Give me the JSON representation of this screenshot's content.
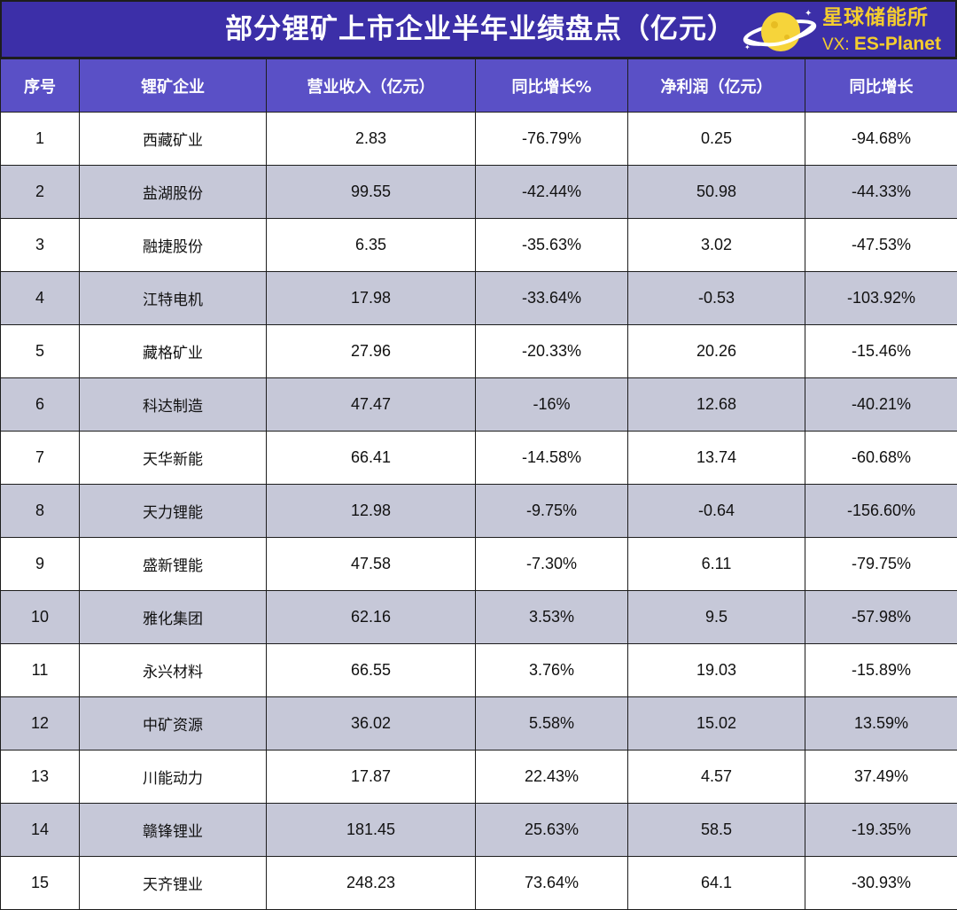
{
  "title": "部分锂矿上市企业半年业绩盘点（亿元）",
  "logo": {
    "name": "星球储能所",
    "vx_prefix": "VX:",
    "vx_handle": "ES-Planet",
    "planet_color": "#f6d43a",
    "ring_color": "#ffffff",
    "text_color": "#f4cd2e"
  },
  "colors": {
    "title_bg": "#3c2fa8",
    "header_bg": "#5a50c6",
    "stripe_bg": "#c6c8d8",
    "border": "#1d1d1d"
  },
  "columns": [
    "序号",
    "锂矿企业",
    "营业收入（亿元）",
    "同比增长%",
    "净利润（亿元）",
    "同比增长"
  ],
  "rows": [
    [
      "1",
      "西藏矿业",
      "2.83",
      "-76.79%",
      "0.25",
      "-94.68%"
    ],
    [
      "2",
      "盐湖股份",
      "99.55",
      "-42.44%",
      "50.98",
      "-44.33%"
    ],
    [
      "3",
      "融捷股份",
      "6.35",
      "-35.63%",
      "3.02",
      "-47.53%"
    ],
    [
      "4",
      "江特电机",
      "17.98",
      "-33.64%",
      "-0.53",
      "-103.92%"
    ],
    [
      "5",
      "藏格矿业",
      "27.96",
      "-20.33%",
      "20.26",
      "-15.46%"
    ],
    [
      "6",
      "科达制造",
      "47.47",
      "-16%",
      "12.68",
      "-40.21%"
    ],
    [
      "7",
      "天华新能",
      "66.41",
      "-14.58%",
      "13.74",
      "-60.68%"
    ],
    [
      "8",
      "天力锂能",
      "12.98",
      "-9.75%",
      "-0.64",
      "-156.60%"
    ],
    [
      "9",
      "盛新锂能",
      "47.58",
      "-7.30%",
      "6.11",
      "-79.75%"
    ],
    [
      "10",
      "雅化集团",
      "62.16",
      "3.53%",
      "9.5",
      "-57.98%"
    ],
    [
      "11",
      "永兴材料",
      "66.55",
      "3.76%",
      "19.03",
      "-15.89%"
    ],
    [
      "12",
      "中矿资源",
      "36.02",
      "5.58%",
      "15.02",
      "13.59%"
    ],
    [
      "13",
      "川能动力",
      "17.87",
      "22.43%",
      "4.57",
      "37.49%"
    ],
    [
      "14",
      "赣锋锂业",
      "181.45",
      "25.63%",
      "58.5",
      "-19.35%"
    ],
    [
      "15",
      "天齐锂业",
      "248.23",
      "73.64%",
      "64.1",
      "-30.93%"
    ]
  ]
}
